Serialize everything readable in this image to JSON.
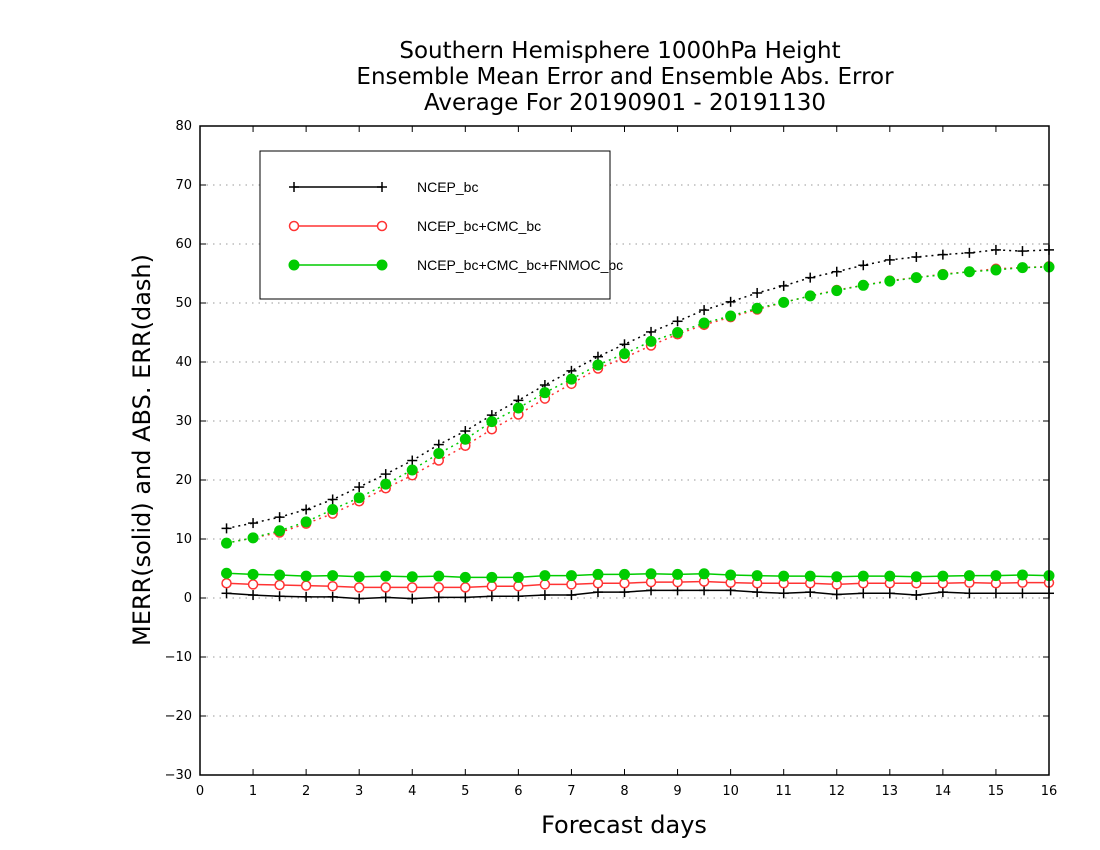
{
  "chart_data": {
    "type": "line",
    "title_lines": [
      "Southern Hemisphere 1000hPa Height",
      "Ensemble Mean Error and Ensemble Abs. Error",
      "Average For 20190901 - 20191130"
    ],
    "xlabel": "Forecast days",
    "ylabel": "MERR(solid) and ABS. ERR(dash)",
    "xlim": [
      0,
      16
    ],
    "ylim": [
      -30,
      80
    ],
    "xticks": [
      "0",
      "1",
      "2",
      "3",
      "4",
      "5",
      "6",
      "7",
      "8",
      "9",
      "10",
      "11",
      "12",
      "13",
      "14",
      "15",
      "16"
    ],
    "yticks": [
      "80",
      "70",
      "60",
      "50",
      "40",
      "30",
      "20",
      "10",
      "0",
      "−10",
      "−20",
      "−30"
    ],
    "grid": "horizontal dotted",
    "legend_position": "top-left",
    "x": [
      0.5,
      1,
      1.5,
      2,
      2.5,
      3,
      3.5,
      4,
      4.5,
      5,
      5.5,
      6,
      6.5,
      7,
      7.5,
      8,
      8.5,
      9,
      9.5,
      10,
      10.5,
      11,
      11.5,
      12,
      12.5,
      13,
      13.5,
      14,
      14.5,
      15,
      15.5,
      16
    ],
    "series": [
      {
        "name": "NCEP_bc",
        "color": "#000000",
        "marker": "plus",
        "merr": [
          0.8,
          0.5,
          0.3,
          0.2,
          0.2,
          -0.1,
          0.1,
          -0.1,
          0.1,
          0.1,
          0.3,
          0.3,
          0.5,
          0.5,
          1.0,
          1.0,
          1.3,
          1.3,
          1.3,
          1.3,
          1.0,
          0.8,
          1.0,
          0.6,
          0.8,
          0.8,
          0.5,
          1.0,
          0.8,
          0.8,
          0.8,
          0.8
        ],
        "abserr": [
          11.8,
          12.7,
          13.7,
          15.0,
          16.7,
          18.8,
          21.0,
          23.3,
          26.0,
          28.3,
          31.0,
          33.5,
          36.1,
          38.5,
          40.9,
          43.0,
          45.1,
          46.9,
          48.8,
          50.2,
          51.7,
          52.9,
          54.3,
          55.3,
          56.4,
          57.3,
          57.8,
          58.2,
          58.5,
          59.0,
          58.8,
          59.0
        ]
      },
      {
        "name": "NCEP_bc+CMC_bc",
        "color": "#ff3333",
        "marker": "circle-open",
        "merr": [
          2.5,
          2.3,
          2.2,
          2.1,
          2.0,
          1.8,
          1.8,
          1.8,
          1.8,
          1.8,
          2.0,
          2.0,
          2.3,
          2.3,
          2.5,
          2.5,
          2.7,
          2.7,
          2.8,
          2.6,
          2.5,
          2.5,
          2.5,
          2.3,
          2.5,
          2.5,
          2.5,
          2.5,
          2.6,
          2.5,
          2.6,
          2.6
        ],
        "abserr": [
          9.3,
          10.2,
          11.1,
          12.6,
          14.3,
          16.4,
          18.6,
          20.8,
          23.3,
          25.8,
          28.6,
          31.1,
          33.8,
          36.3,
          38.9,
          40.7,
          42.8,
          44.7,
          46.3,
          47.6,
          48.9,
          50.1,
          51.2,
          52.2,
          53.0,
          53.8,
          54.3,
          54.9,
          55.3,
          55.8,
          56.0,
          56.2
        ]
      },
      {
        "name": "NCEP_bc+CMC_bc+FNMOC_bc",
        "color": "#00cc00",
        "marker": "circle-filled",
        "merr": [
          4.2,
          4.0,
          3.9,
          3.7,
          3.8,
          3.6,
          3.7,
          3.6,
          3.7,
          3.5,
          3.5,
          3.5,
          3.8,
          3.8,
          4.0,
          4.0,
          4.1,
          4.0,
          4.1,
          3.9,
          3.8,
          3.7,
          3.7,
          3.6,
          3.7,
          3.7,
          3.6,
          3.7,
          3.8,
          3.8,
          3.9,
          3.8
        ],
        "abserr": [
          9.3,
          10.2,
          11.4,
          12.9,
          15.0,
          17.0,
          19.3,
          21.7,
          24.5,
          26.9,
          29.9,
          32.2,
          34.8,
          37.1,
          39.5,
          41.4,
          43.5,
          45.0,
          46.6,
          47.8,
          49.1,
          50.1,
          51.2,
          52.1,
          53.0,
          53.7,
          54.3,
          54.8,
          55.3,
          55.6,
          56.0,
          56.1
        ]
      }
    ]
  }
}
